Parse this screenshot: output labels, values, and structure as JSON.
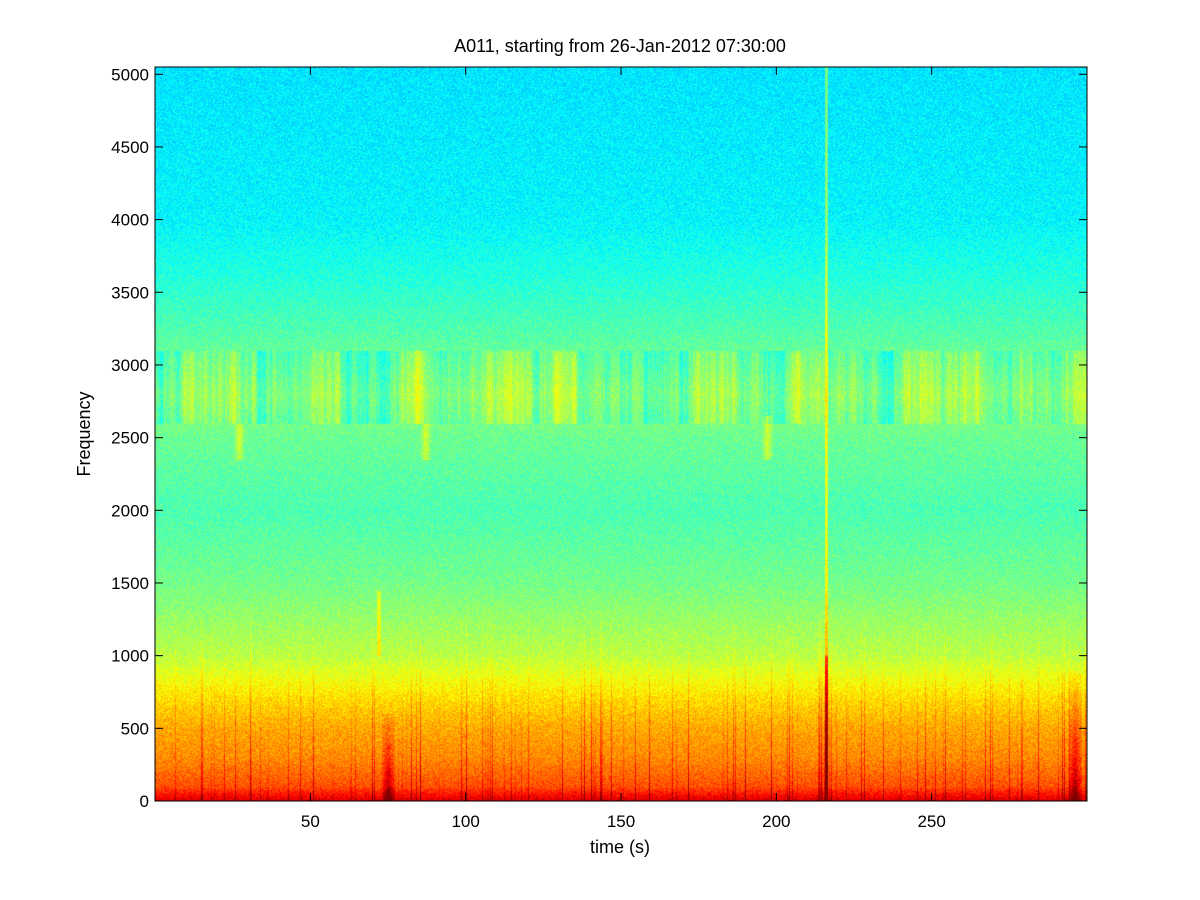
{
  "chart_data": {
    "type": "heatmap",
    "title": "A011, starting from 26-Jan-2012 07:30:00",
    "xlabel": "time (s)",
    "ylabel": "Frequency",
    "xlim": [
      0,
      300
    ],
    "ylim": [
      0,
      5050
    ],
    "x_ticks": [
      50,
      100,
      150,
      200,
      250
    ],
    "y_ticks": [
      0,
      500,
      1000,
      1500,
      2000,
      2500,
      3000,
      3500,
      4000,
      4500,
      5000
    ],
    "colormap": "jet",
    "grid": false,
    "background_colors": {
      "high_freq": "#3fe8c2",
      "mid_freq": "#9cf07a",
      "low_freq": "#ffe600",
      "floor": "#e8201a"
    },
    "intensity_profile": {
      "frequency": [
        0,
        100,
        300,
        500,
        700,
        1000,
        1500,
        2000,
        2500,
        2800,
        3200,
        3600,
        4000,
        5050
      ],
      "level": [
        0.92,
        0.8,
        0.74,
        0.71,
        0.66,
        0.56,
        0.49,
        0.45,
        0.48,
        0.52,
        0.46,
        0.41,
        0.37,
        0.35
      ]
    },
    "events": [
      {
        "time": 216,
        "f_low": 0,
        "f_high": 5050,
        "type": "broadband transient"
      },
      {
        "time": 75,
        "f_low": 0,
        "f_high": 600,
        "type": "low-frequency burst"
      },
      {
        "time": 296,
        "f_low": 0,
        "f_high": 900,
        "type": "low-frequency burst"
      },
      {
        "time": 27,
        "f_low": 2350,
        "f_high": 2600,
        "type": "tonal patch"
      },
      {
        "time": 87,
        "f_low": 2350,
        "f_high": 2600,
        "type": "tonal patch"
      },
      {
        "time": 197,
        "f_low": 2350,
        "f_high": 2650,
        "type": "tonal patch"
      },
      {
        "time": 72,
        "f_low": 1000,
        "f_high": 1450,
        "type": "narrow streak"
      }
    ]
  }
}
